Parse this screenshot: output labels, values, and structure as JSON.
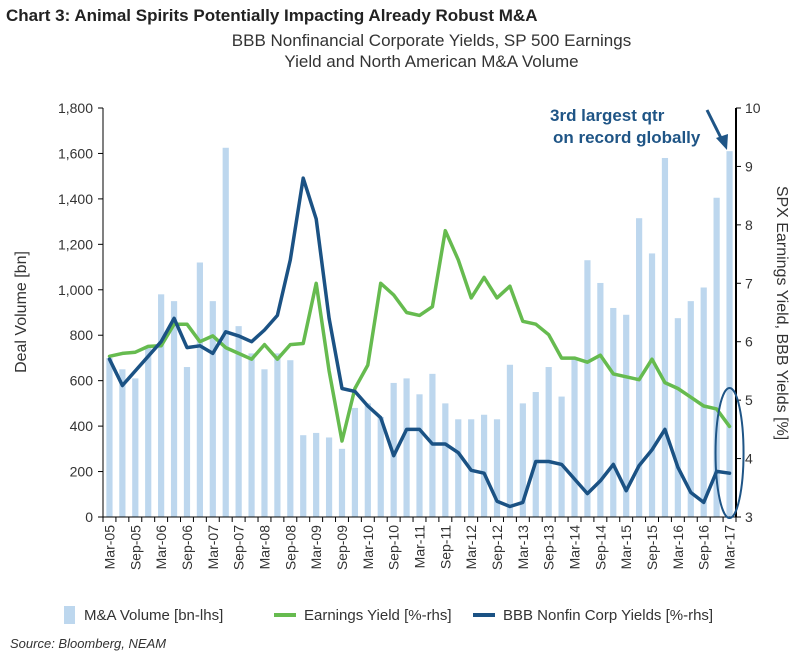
{
  "chart_data": {
    "type": "bar+line",
    "title": "Chart 3: Animal Spirits Potentially Impacting Already Robust M&A",
    "subtitle_line1": "BBB Nonfinancial Corporate Yields, SP 500 Earnings",
    "subtitle_line2": "Yield and North American M&A Volume",
    "ylabel_left": "Deal Volume [bn]",
    "ylabel_right": "SPX Earnings Yield, BBB Yields [%]",
    "ylim_left": [
      0,
      1800
    ],
    "ylim_right": [
      3,
      10
    ],
    "yticks_left": [
      "0",
      "200",
      "400",
      "600",
      "800",
      "1,000",
      "1,200",
      "1,400",
      "1,600",
      "1,800"
    ],
    "yticks_right": [
      "3",
      "4",
      "5",
      "6",
      "7",
      "8",
      "9",
      "10"
    ],
    "x_tick_labels": [
      "Mar-05",
      "Sep-05",
      "Mar-06",
      "Sep-06",
      "Mar-07",
      "Sep-07",
      "Mar-08",
      "Sep-08",
      "Mar-09",
      "Sep-09",
      "Mar-10",
      "Sep-10",
      "Mar-11",
      "Sep-11",
      "Mar-12",
      "Sep-12",
      "Mar-13",
      "Sep-13",
      "Mar-14",
      "Sep-14",
      "Mar-15",
      "Sep-15",
      "Mar-16",
      "Sep-16",
      "Mar-17"
    ],
    "series": [
      {
        "name": "M&A Volume [bn-lhs]",
        "kind": "bar",
        "color": "#bdd7ee",
        "values": [
          700,
          650,
          610,
          750,
          980,
          950,
          660,
          1120,
          950,
          1625,
          840,
          720,
          650,
          720,
          690,
          360,
          370,
          350,
          300,
          480,
          500,
          440,
          590,
          610,
          540,
          630,
          500,
          430,
          430,
          450,
          430,
          670,
          500,
          550,
          660,
          530,
          700,
          1130,
          1030,
          920,
          890,
          1315,
          1160,
          1580,
          875,
          950,
          1010,
          1405,
          1610
        ]
      },
      {
        "name": "Earnings Yield [%-rhs]",
        "kind": "line",
        "color": "#66bb4f",
        "values": [
          5.75,
          5.8,
          5.82,
          5.92,
          5.93,
          6.3,
          6.3,
          6.0,
          6.1,
          5.9,
          5.8,
          5.7,
          5.95,
          5.7,
          5.95,
          5.97,
          7.0,
          5.5,
          4.3,
          5.2,
          5.6,
          7.0,
          6.8,
          6.5,
          6.45,
          6.6,
          7.9,
          7.4,
          6.75,
          7.1,
          6.75,
          6.95,
          6.35,
          6.3,
          6.12,
          5.72,
          5.72,
          5.65,
          5.77,
          5.45,
          5.4,
          5.35,
          5.7,
          5.3,
          5.2,
          5.05,
          4.9,
          4.85,
          4.55
        ]
      },
      {
        "name": "BBB Nonfin Corp Yields [%-rhs]",
        "kind": "line",
        "color": "#1b5284",
        "values": [
          5.7,
          5.25,
          5.5,
          5.75,
          6.0,
          6.4,
          5.9,
          5.93,
          5.8,
          6.17,
          6.1,
          6.0,
          6.2,
          6.45,
          7.4,
          8.8,
          8.1,
          6.4,
          5.2,
          5.15,
          4.9,
          4.7,
          4.05,
          4.5,
          4.5,
          4.25,
          4.25,
          4.1,
          3.8,
          3.75,
          3.27,
          3.18,
          3.25,
          3.95,
          3.95,
          3.9,
          3.65,
          3.4,
          3.62,
          3.9,
          3.45,
          3.88,
          4.15,
          4.5,
          3.85,
          3.42,
          3.25,
          3.78,
          3.75
        ]
      }
    ],
    "annotation_line1": "3rd largest qtr",
    "annotation_line2": "on record globally",
    "source": "Source: Bloomberg, NEAM"
  }
}
